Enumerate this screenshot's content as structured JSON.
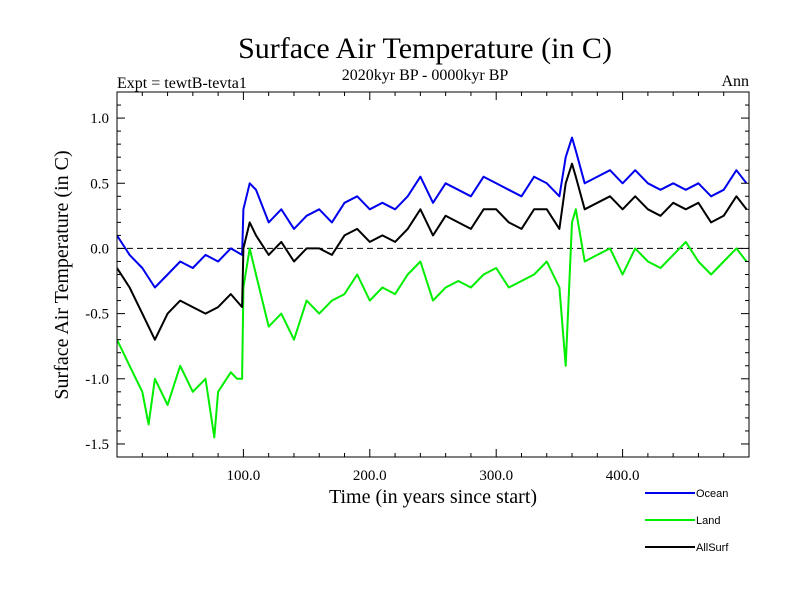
{
  "header": {
    "title": "Surface Air Temperature (in C)",
    "subtitle": "2020kyr BP - 0000kyr BP",
    "expt": "Expt = tewtB-tevta1",
    "season": "Ann"
  },
  "chart_data": {
    "type": "line",
    "title": "Surface Air Temperature (in C)",
    "xlabel": "Time (in years since start)",
    "ylabel": "Surface Air Temperature (in C)",
    "xlim": [
      0,
      500
    ],
    "ylim": [
      -1.6,
      1.2
    ],
    "xticks": [
      100,
      200,
      300,
      400
    ],
    "xtick_labels": [
      "100.0",
      "200.0",
      "300.0",
      "400.0"
    ],
    "yticks": [
      -1.5,
      -1.0,
      -0.5,
      0.0,
      0.5,
      1.0
    ],
    "ytick_labels": [
      "-1.5",
      "-1.0",
      "-0.5",
      "0.0",
      "0.5",
      "1.0"
    ],
    "reference_line": 0.0,
    "legend_position": "bottom-right, outside plot",
    "series": [
      {
        "name": "Ocean",
        "color": "#0000ee",
        "x": [
          0,
          10,
          20,
          30,
          40,
          50,
          60,
          70,
          80,
          90,
          99,
          100,
          105,
          110,
          120,
          130,
          140,
          150,
          160,
          170,
          180,
          190,
          200,
          210,
          220,
          230,
          240,
          250,
          260,
          270,
          280,
          290,
          300,
          310,
          320,
          330,
          340,
          350,
          355,
          360,
          363,
          370,
          380,
          390,
          400,
          410,
          420,
          430,
          440,
          450,
          460,
          470,
          480,
          490,
          498
        ],
        "values": [
          0.1,
          -0.05,
          -0.15,
          -0.3,
          -0.2,
          -0.1,
          -0.15,
          -0.05,
          -0.1,
          0.0,
          -0.05,
          0.3,
          0.5,
          0.45,
          0.2,
          0.3,
          0.15,
          0.25,
          0.3,
          0.2,
          0.35,
          0.4,
          0.3,
          0.35,
          0.3,
          0.4,
          0.55,
          0.35,
          0.5,
          0.45,
          0.4,
          0.55,
          0.5,
          0.45,
          0.4,
          0.55,
          0.5,
          0.4,
          0.7,
          0.85,
          0.75,
          0.5,
          0.55,
          0.6,
          0.5,
          0.6,
          0.5,
          0.45,
          0.5,
          0.45,
          0.5,
          0.4,
          0.45,
          0.6,
          0.5
        ]
      },
      {
        "name": "Land",
        "color": "#00ee00",
        "x": [
          0,
          10,
          20,
          25,
          30,
          40,
          50,
          60,
          70,
          77,
          80,
          90,
          95,
          99,
          100,
          105,
          110,
          120,
          130,
          140,
          150,
          160,
          170,
          180,
          190,
          200,
          210,
          220,
          230,
          240,
          250,
          260,
          270,
          280,
          290,
          300,
          310,
          320,
          330,
          340,
          350,
          355,
          360,
          363,
          370,
          380,
          390,
          400,
          410,
          420,
          430,
          440,
          450,
          460,
          470,
          480,
          490,
          498
        ],
        "values": [
          -0.7,
          -0.9,
          -1.1,
          -1.35,
          -1.0,
          -1.2,
          -0.9,
          -1.1,
          -1.0,
          -1.45,
          -1.1,
          -0.95,
          -1.0,
          -1.0,
          -0.3,
          0.0,
          -0.2,
          -0.6,
          -0.5,
          -0.7,
          -0.4,
          -0.5,
          -0.4,
          -0.35,
          -0.2,
          -0.4,
          -0.3,
          -0.35,
          -0.2,
          -0.1,
          -0.4,
          -0.3,
          -0.25,
          -0.3,
          -0.2,
          -0.15,
          -0.3,
          -0.25,
          -0.2,
          -0.1,
          -0.3,
          -0.9,
          0.2,
          0.3,
          -0.1,
          -0.05,
          0.0,
          -0.2,
          0.0,
          -0.1,
          -0.15,
          -0.05,
          0.05,
          -0.1,
          -0.2,
          -0.1,
          0.0,
          -0.1
        ]
      },
      {
        "name": "AllSurf",
        "color": "#000000",
        "x": [
          0,
          10,
          20,
          30,
          40,
          50,
          60,
          70,
          80,
          90,
          99,
          100,
          105,
          110,
          120,
          130,
          140,
          150,
          160,
          170,
          180,
          190,
          200,
          210,
          220,
          230,
          240,
          250,
          260,
          270,
          280,
          290,
          300,
          310,
          320,
          330,
          340,
          350,
          355,
          360,
          363,
          370,
          380,
          390,
          400,
          410,
          420,
          430,
          440,
          450,
          460,
          470,
          480,
          490,
          498
        ],
        "values": [
          -0.15,
          -0.3,
          -0.5,
          -0.7,
          -0.5,
          -0.4,
          -0.45,
          -0.5,
          -0.45,
          -0.35,
          -0.45,
          0.0,
          0.2,
          0.1,
          -0.05,
          0.05,
          -0.1,
          0.0,
          0.0,
          -0.05,
          0.1,
          0.15,
          0.05,
          0.1,
          0.05,
          0.15,
          0.3,
          0.1,
          0.25,
          0.2,
          0.15,
          0.3,
          0.3,
          0.2,
          0.15,
          0.3,
          0.3,
          0.15,
          0.5,
          0.65,
          0.55,
          0.3,
          0.35,
          0.4,
          0.3,
          0.4,
          0.3,
          0.25,
          0.35,
          0.3,
          0.35,
          0.2,
          0.25,
          0.4,
          0.3
        ]
      }
    ]
  }
}
